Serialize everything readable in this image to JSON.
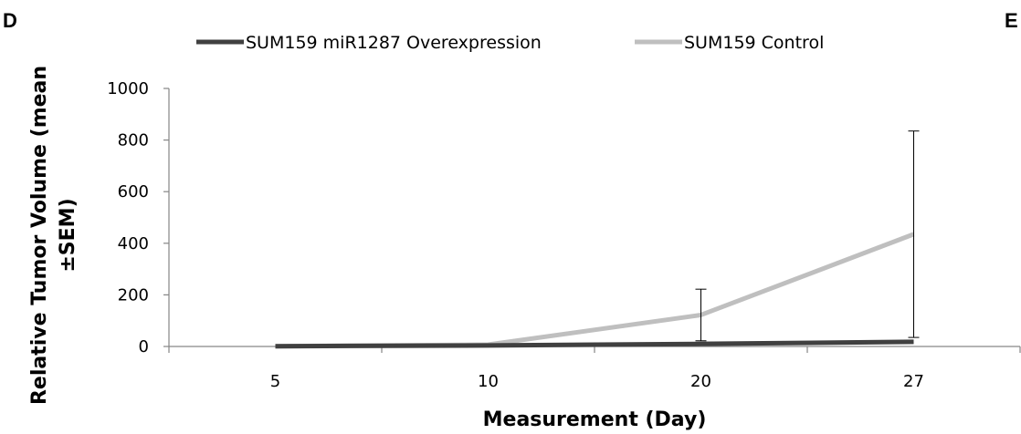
{
  "panel_labels": {
    "left": "D",
    "right": "E"
  },
  "chart_data": {
    "type": "line",
    "title": "",
    "xlabel": "Measurement (Day)",
    "ylabel_line1": "Relative Tumor Volume (mean",
    "ylabel_line2": "±SEM)",
    "categories": [
      "5",
      "10",
      "20",
      "27"
    ],
    "ylim": [
      0,
      1000
    ],
    "yticks": [
      0,
      200,
      400,
      600,
      800,
      1000
    ],
    "grid": false,
    "legend_position": "top",
    "series": [
      {
        "name": "SUM159 miR1287 Overexpression",
        "color": "#404040",
        "values": [
          1,
          4,
          10,
          18
        ],
        "errors": [
          0,
          0,
          0,
          0
        ]
      },
      {
        "name": "SUM159 Control",
        "color": "#bfbfbf",
        "values": [
          1,
          7,
          122,
          435
        ],
        "errors": [
          0,
          0,
          100,
          400
        ]
      }
    ]
  }
}
